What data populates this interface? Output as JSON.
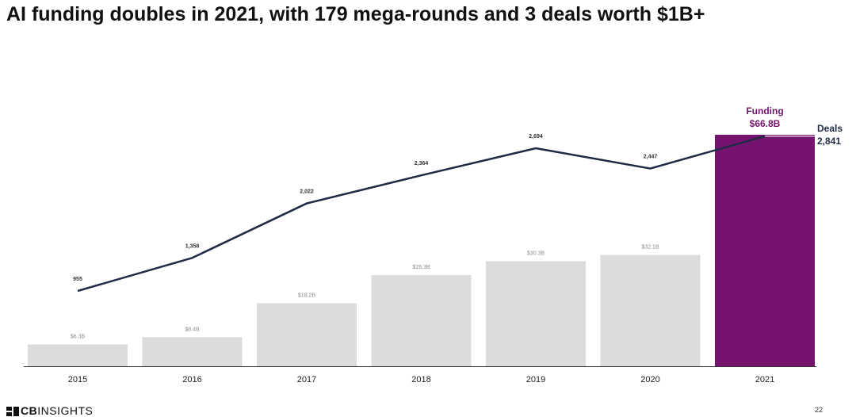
{
  "title": "AI funding doubles in 2021, with 179 mega-rounds and 3 deals worth $1B+",
  "logo": {
    "bold": "CB",
    "regular": "INSIGHTS"
  },
  "page_number": "22",
  "colors": {
    "bar_default": "#dcdcdc",
    "bar_highlight": "#75136e",
    "line": "#1f2a44",
    "funding_label": "#75136e",
    "axis": "#333333"
  },
  "chart_data": {
    "type": "bar",
    "categories": [
      "2015",
      "2016",
      "2017",
      "2018",
      "2019",
      "2020",
      "2021"
    ],
    "series": [
      {
        "name": "Funding",
        "type": "bar",
        "values": [
          6.3,
          8.4,
          18.2,
          26.3,
          30.3,
          32.1,
          66.8
        ],
        "labels": [
          "$6.3B",
          "$8.4B",
          "$18.2B",
          "$26.3B",
          "$30.3B",
          "$32.1B",
          "$66.8B"
        ]
      },
      {
        "name": "Deals",
        "type": "line",
        "values": [
          955,
          1358,
          2022,
          2364,
          2694,
          2447,
          2841
        ],
        "labels": [
          "955",
          "1,358",
          "2,022",
          "2,364",
          "2,694",
          "2,447",
          "2,841"
        ]
      }
    ],
    "highlight": {
      "index": 6,
      "funding_name": "Funding",
      "deals_name": "Deals"
    },
    "xlabel": "",
    "ylabel": ""
  }
}
